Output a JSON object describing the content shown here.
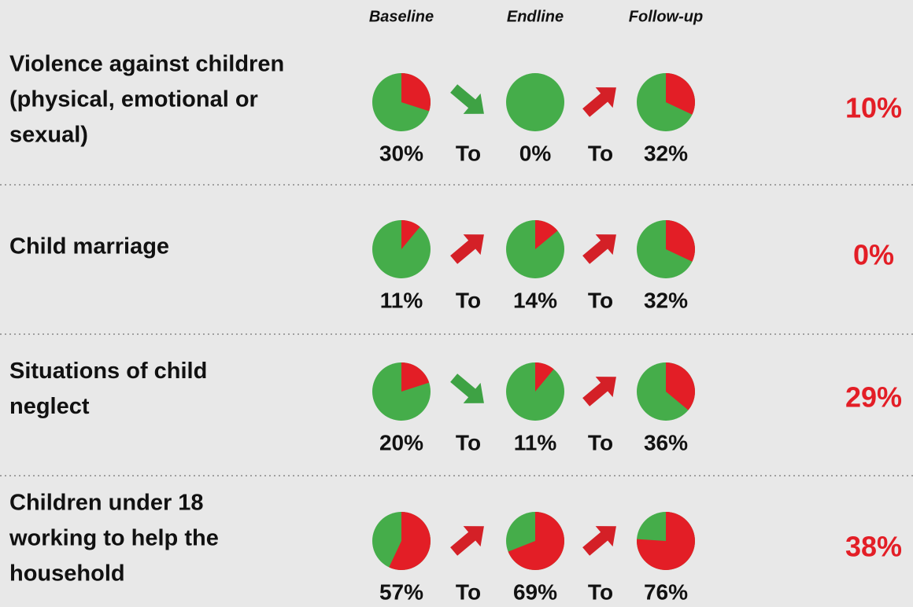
{
  "columns": [
    "Baseline",
    "Endline",
    "Follow-up"
  ],
  "connector": "To",
  "colors": {
    "yes": "#e31e26",
    "no": "#45ad4a",
    "up": "#d42027",
    "down": "#3ea244"
  },
  "rows": [
    {
      "label": [
        "Violence against children",
        "(physical, emotional or",
        "sexual)"
      ],
      "values": [
        30,
        0,
        32
      ],
      "value_labels": [
        "30%",
        "0%",
        "32%"
      ],
      "change": "10%"
    },
    {
      "label": [
        "Child marriage"
      ],
      "values": [
        11,
        14,
        32
      ],
      "value_labels": [
        "11%",
        "14%",
        "32%"
      ],
      "change": "0%"
    },
    {
      "label": [
        "Situations of child",
        "neglect"
      ],
      "values": [
        20,
        11,
        36
      ],
      "value_labels": [
        "20%",
        "11%",
        "36%"
      ],
      "change": "29%"
    },
    {
      "label": [
        "Children under 18",
        "working to help the",
        "household"
      ],
      "values": [
        57,
        69,
        76
      ],
      "value_labels": [
        "57%",
        "69%",
        "76%"
      ],
      "change": "38%"
    }
  ]
}
